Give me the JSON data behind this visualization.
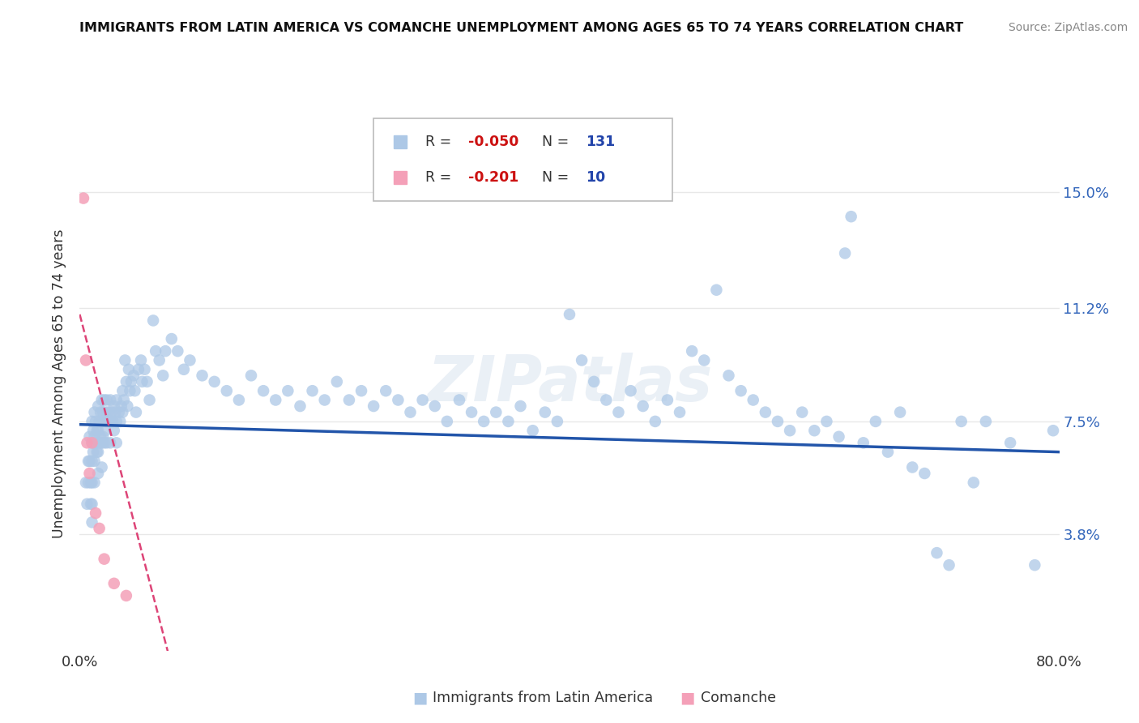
{
  "title": "IMMIGRANTS FROM LATIN AMERICA VS COMANCHE UNEMPLOYMENT AMONG AGES 65 TO 74 YEARS CORRELATION CHART",
  "source": "Source: ZipAtlas.com",
  "ylabel": "Unemployment Among Ages 65 to 74 years",
  "xlim": [
    0.0,
    0.8
  ],
  "ylim": [
    0.0,
    0.175
  ],
  "ytick_positions": [
    0.038,
    0.075,
    0.112,
    0.15
  ],
  "ytick_labels": [
    "3.8%",
    "7.5%",
    "11.2%",
    "15.0%"
  ],
  "blue_color": "#adc8e6",
  "pink_color": "#f4a0b8",
  "line_blue": "#2255aa",
  "line_pink": "#dd4477",
  "background_color": "#ffffff",
  "grid_color": "#e8e8e8",
  "blue_scatter": [
    [
      0.005,
      0.055
    ],
    [
      0.006,
      0.048
    ],
    [
      0.007,
      0.062
    ],
    [
      0.007,
      0.055
    ],
    [
      0.008,
      0.07
    ],
    [
      0.008,
      0.062
    ],
    [
      0.009,
      0.055
    ],
    [
      0.009,
      0.048
    ],
    [
      0.01,
      0.075
    ],
    [
      0.01,
      0.068
    ],
    [
      0.01,
      0.062
    ],
    [
      0.01,
      0.055
    ],
    [
      0.01,
      0.048
    ],
    [
      0.01,
      0.042
    ],
    [
      0.011,
      0.072
    ],
    [
      0.011,
      0.065
    ],
    [
      0.012,
      0.078
    ],
    [
      0.012,
      0.07
    ],
    [
      0.012,
      0.062
    ],
    [
      0.012,
      0.055
    ],
    [
      0.013,
      0.075
    ],
    [
      0.013,
      0.068
    ],
    [
      0.014,
      0.072
    ],
    [
      0.014,
      0.065
    ],
    [
      0.015,
      0.08
    ],
    [
      0.015,
      0.072
    ],
    [
      0.015,
      0.065
    ],
    [
      0.015,
      0.058
    ],
    [
      0.016,
      0.075
    ],
    [
      0.016,
      0.068
    ],
    [
      0.017,
      0.078
    ],
    [
      0.017,
      0.07
    ],
    [
      0.018,
      0.082
    ],
    [
      0.018,
      0.075
    ],
    [
      0.018,
      0.068
    ],
    [
      0.018,
      0.06
    ],
    [
      0.019,
      0.078
    ],
    [
      0.019,
      0.07
    ],
    [
      0.02,
      0.082
    ],
    [
      0.02,
      0.075
    ],
    [
      0.02,
      0.068
    ],
    [
      0.021,
      0.078
    ],
    [
      0.021,
      0.072
    ],
    [
      0.022,
      0.082
    ],
    [
      0.022,
      0.075
    ],
    [
      0.022,
      0.068
    ],
    [
      0.023,
      0.078
    ],
    [
      0.024,
      0.075
    ],
    [
      0.025,
      0.082
    ],
    [
      0.025,
      0.075
    ],
    [
      0.025,
      0.068
    ],
    [
      0.026,
      0.078
    ],
    [
      0.027,
      0.075
    ],
    [
      0.028,
      0.08
    ],
    [
      0.028,
      0.072
    ],
    [
      0.029,
      0.078
    ],
    [
      0.03,
      0.082
    ],
    [
      0.03,
      0.075
    ],
    [
      0.03,
      0.068
    ],
    [
      0.032,
      0.078
    ],
    [
      0.033,
      0.075
    ],
    [
      0.034,
      0.08
    ],
    [
      0.035,
      0.085
    ],
    [
      0.035,
      0.078
    ],
    [
      0.036,
      0.082
    ],
    [
      0.037,
      0.095
    ],
    [
      0.038,
      0.088
    ],
    [
      0.039,
      0.08
    ],
    [
      0.04,
      0.092
    ],
    [
      0.041,
      0.085
    ],
    [
      0.042,
      0.088
    ],
    [
      0.044,
      0.09
    ],
    [
      0.045,
      0.085
    ],
    [
      0.046,
      0.078
    ],
    [
      0.048,
      0.092
    ],
    [
      0.05,
      0.095
    ],
    [
      0.051,
      0.088
    ],
    [
      0.053,
      0.092
    ],
    [
      0.055,
      0.088
    ],
    [
      0.057,
      0.082
    ],
    [
      0.06,
      0.108
    ],
    [
      0.062,
      0.098
    ],
    [
      0.065,
      0.095
    ],
    [
      0.068,
      0.09
    ],
    [
      0.07,
      0.098
    ],
    [
      0.075,
      0.102
    ],
    [
      0.08,
      0.098
    ],
    [
      0.085,
      0.092
    ],
    [
      0.09,
      0.095
    ],
    [
      0.1,
      0.09
    ],
    [
      0.11,
      0.088
    ],
    [
      0.12,
      0.085
    ],
    [
      0.13,
      0.082
    ],
    [
      0.14,
      0.09
    ],
    [
      0.15,
      0.085
    ],
    [
      0.16,
      0.082
    ],
    [
      0.17,
      0.085
    ],
    [
      0.18,
      0.08
    ],
    [
      0.19,
      0.085
    ],
    [
      0.2,
      0.082
    ],
    [
      0.21,
      0.088
    ],
    [
      0.22,
      0.082
    ],
    [
      0.23,
      0.085
    ],
    [
      0.24,
      0.08
    ],
    [
      0.25,
      0.085
    ],
    [
      0.26,
      0.082
    ],
    [
      0.27,
      0.078
    ],
    [
      0.28,
      0.082
    ],
    [
      0.29,
      0.08
    ],
    [
      0.3,
      0.075
    ],
    [
      0.31,
      0.082
    ],
    [
      0.32,
      0.078
    ],
    [
      0.33,
      0.075
    ],
    [
      0.34,
      0.078
    ],
    [
      0.35,
      0.075
    ],
    [
      0.36,
      0.08
    ],
    [
      0.37,
      0.072
    ],
    [
      0.38,
      0.078
    ],
    [
      0.39,
      0.075
    ],
    [
      0.4,
      0.11
    ],
    [
      0.41,
      0.095
    ],
    [
      0.42,
      0.088
    ],
    [
      0.43,
      0.082
    ],
    [
      0.44,
      0.078
    ],
    [
      0.45,
      0.085
    ],
    [
      0.46,
      0.08
    ],
    [
      0.47,
      0.075
    ],
    [
      0.48,
      0.082
    ],
    [
      0.49,
      0.078
    ],
    [
      0.5,
      0.098
    ],
    [
      0.51,
      0.095
    ],
    [
      0.52,
      0.118
    ],
    [
      0.53,
      0.09
    ],
    [
      0.54,
      0.085
    ],
    [
      0.55,
      0.082
    ],
    [
      0.56,
      0.078
    ],
    [
      0.57,
      0.075
    ],
    [
      0.58,
      0.072
    ],
    [
      0.59,
      0.078
    ],
    [
      0.6,
      0.072
    ],
    [
      0.61,
      0.075
    ],
    [
      0.62,
      0.07
    ],
    [
      0.625,
      0.13
    ],
    [
      0.63,
      0.142
    ],
    [
      0.64,
      0.068
    ],
    [
      0.65,
      0.075
    ],
    [
      0.66,
      0.065
    ],
    [
      0.67,
      0.078
    ],
    [
      0.68,
      0.06
    ],
    [
      0.69,
      0.058
    ],
    [
      0.7,
      0.032
    ],
    [
      0.71,
      0.028
    ],
    [
      0.72,
      0.075
    ],
    [
      0.73,
      0.055
    ],
    [
      0.74,
      0.075
    ],
    [
      0.76,
      0.068
    ],
    [
      0.78,
      0.028
    ],
    [
      0.795,
      0.072
    ]
  ],
  "pink_scatter": [
    [
      0.003,
      0.148
    ],
    [
      0.005,
      0.095
    ],
    [
      0.006,
      0.068
    ],
    [
      0.008,
      0.058
    ],
    [
      0.01,
      0.068
    ],
    [
      0.013,
      0.045
    ],
    [
      0.016,
      0.04
    ],
    [
      0.02,
      0.03
    ],
    [
      0.028,
      0.022
    ],
    [
      0.038,
      0.018
    ]
  ],
  "blue_line_x": [
    0.0,
    0.8
  ],
  "blue_line_y": [
    0.074,
    0.065
  ],
  "pink_line_x": [
    0.0,
    0.06
  ],
  "pink_line_y": [
    0.11,
    0.018
  ]
}
